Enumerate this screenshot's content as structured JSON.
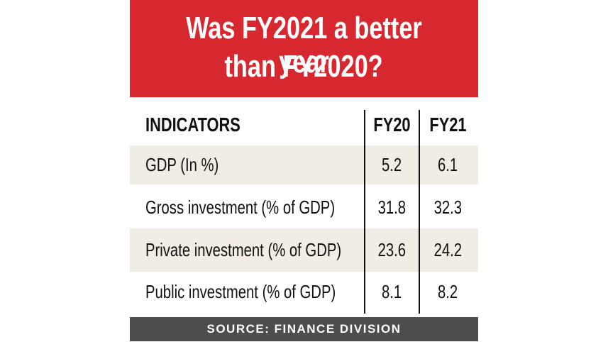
{
  "header": {
    "title_lines": [
      "Was FY2021 a better year",
      "than FY2020?"
    ]
  },
  "table": {
    "columns": [
      "INDICATORS",
      "FY20",
      "FY21"
    ],
    "rows": [
      [
        "GDP (In %)",
        5.2,
        6.1
      ],
      [
        "Gross investment (% of GDP)",
        31.8,
        32.3
      ],
      [
        "Private investment (% of GDP)",
        23.6,
        24.2
      ],
      [
        "Public investment (% of GDP)",
        8.1,
        8.2
      ]
    ]
  },
  "footer": {
    "source": "SOURCE: FINANCE DIVISION"
  }
}
